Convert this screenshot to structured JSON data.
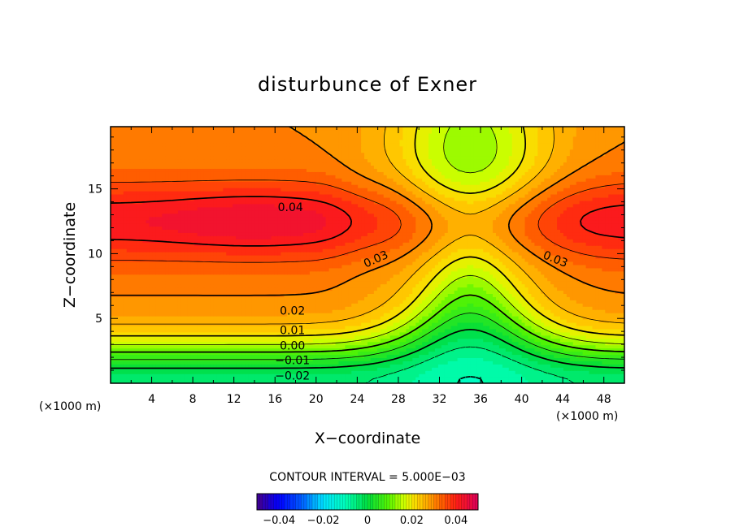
{
  "chart_data": {
    "type": "heatmap",
    "title": "disturbunce of Exner",
    "xlabel": "X−coordinate",
    "ylabel": "Z−coordinate",
    "x_unit_left": "(×1000 m)",
    "x_unit_right": "(×1000 m)",
    "xlim": [
      0,
      50
    ],
    "ylim": [
      0,
      19.8
    ],
    "x_ticks": [
      4,
      8,
      12,
      16,
      20,
      24,
      28,
      32,
      36,
      40,
      44,
      48
    ],
    "x_tick_labels": [
      "4",
      "8",
      "12",
      "16",
      "20",
      "24",
      "28",
      "32",
      "36",
      "40",
      "44",
      "48"
    ],
    "y_ticks": [
      5,
      10,
      15
    ],
    "y_tick_labels": [
      "5",
      "10",
      "15"
    ],
    "contour_interval_text": "CONTOUR INTERVAL = 5.000E−03",
    "contour_levels": [
      -0.03,
      -0.025,
      -0.02,
      -0.015,
      -0.01,
      -0.005,
      0.0,
      0.005,
      0.01,
      0.015,
      0.02,
      0.025,
      0.03,
      0.035,
      0.04
    ],
    "contour_labels": [
      {
        "text": "0.04",
        "x": 17.5,
        "z": 13.6
      },
      {
        "text": "0.03",
        "x": 25.8,
        "z": 9.6
      },
      {
        "text": "0.03",
        "x": 43.3,
        "z": 9.6
      },
      {
        "text": "0.02",
        "x": 17.7,
        "z": 5.6
      },
      {
        "text": "0.01",
        "x": 17.7,
        "z": 4.1
      },
      {
        "text": "0.00",
        "x": 17.7,
        "z": 2.9
      },
      {
        "text": "−0.01",
        "x": 17.7,
        "z": 1.8
      },
      {
        "text": "−0.02",
        "x": 17.7,
        "z": 0.6
      }
    ],
    "field_samples": [
      {
        "x": 5,
        "z": 12.5,
        "value": 0.041
      },
      {
        "x": 16,
        "z": 12.5,
        "value": 0.042
      },
      {
        "x": 48,
        "z": 12.5,
        "value": 0.038
      },
      {
        "x": 26,
        "z": 15,
        "value": 0.03
      },
      {
        "x": 35,
        "z": 15,
        "value": 0.027
      },
      {
        "x": 35,
        "z": 9,
        "value": 0.024
      },
      {
        "x": 35,
        "z": 5,
        "value": 0.014
      },
      {
        "x": 35,
        "z": 2.5,
        "value": -0.008
      },
      {
        "x": 35,
        "z": 0.5,
        "value": -0.03
      },
      {
        "x": 8,
        "z": 5,
        "value": 0.023
      },
      {
        "x": 8,
        "z": 3,
        "value": 0.001
      },
      {
        "x": 8,
        "z": 0.5,
        "value": -0.023
      }
    ],
    "colorbar": {
      "range": [
        -0.05,
        0.05
      ],
      "tick_values": [
        -0.04,
        -0.02,
        0,
        0.02,
        0.04
      ],
      "tick_labels": [
        "−0.04",
        "−0.02",
        "0",
        "0.02",
        "0.04"
      ]
    }
  }
}
